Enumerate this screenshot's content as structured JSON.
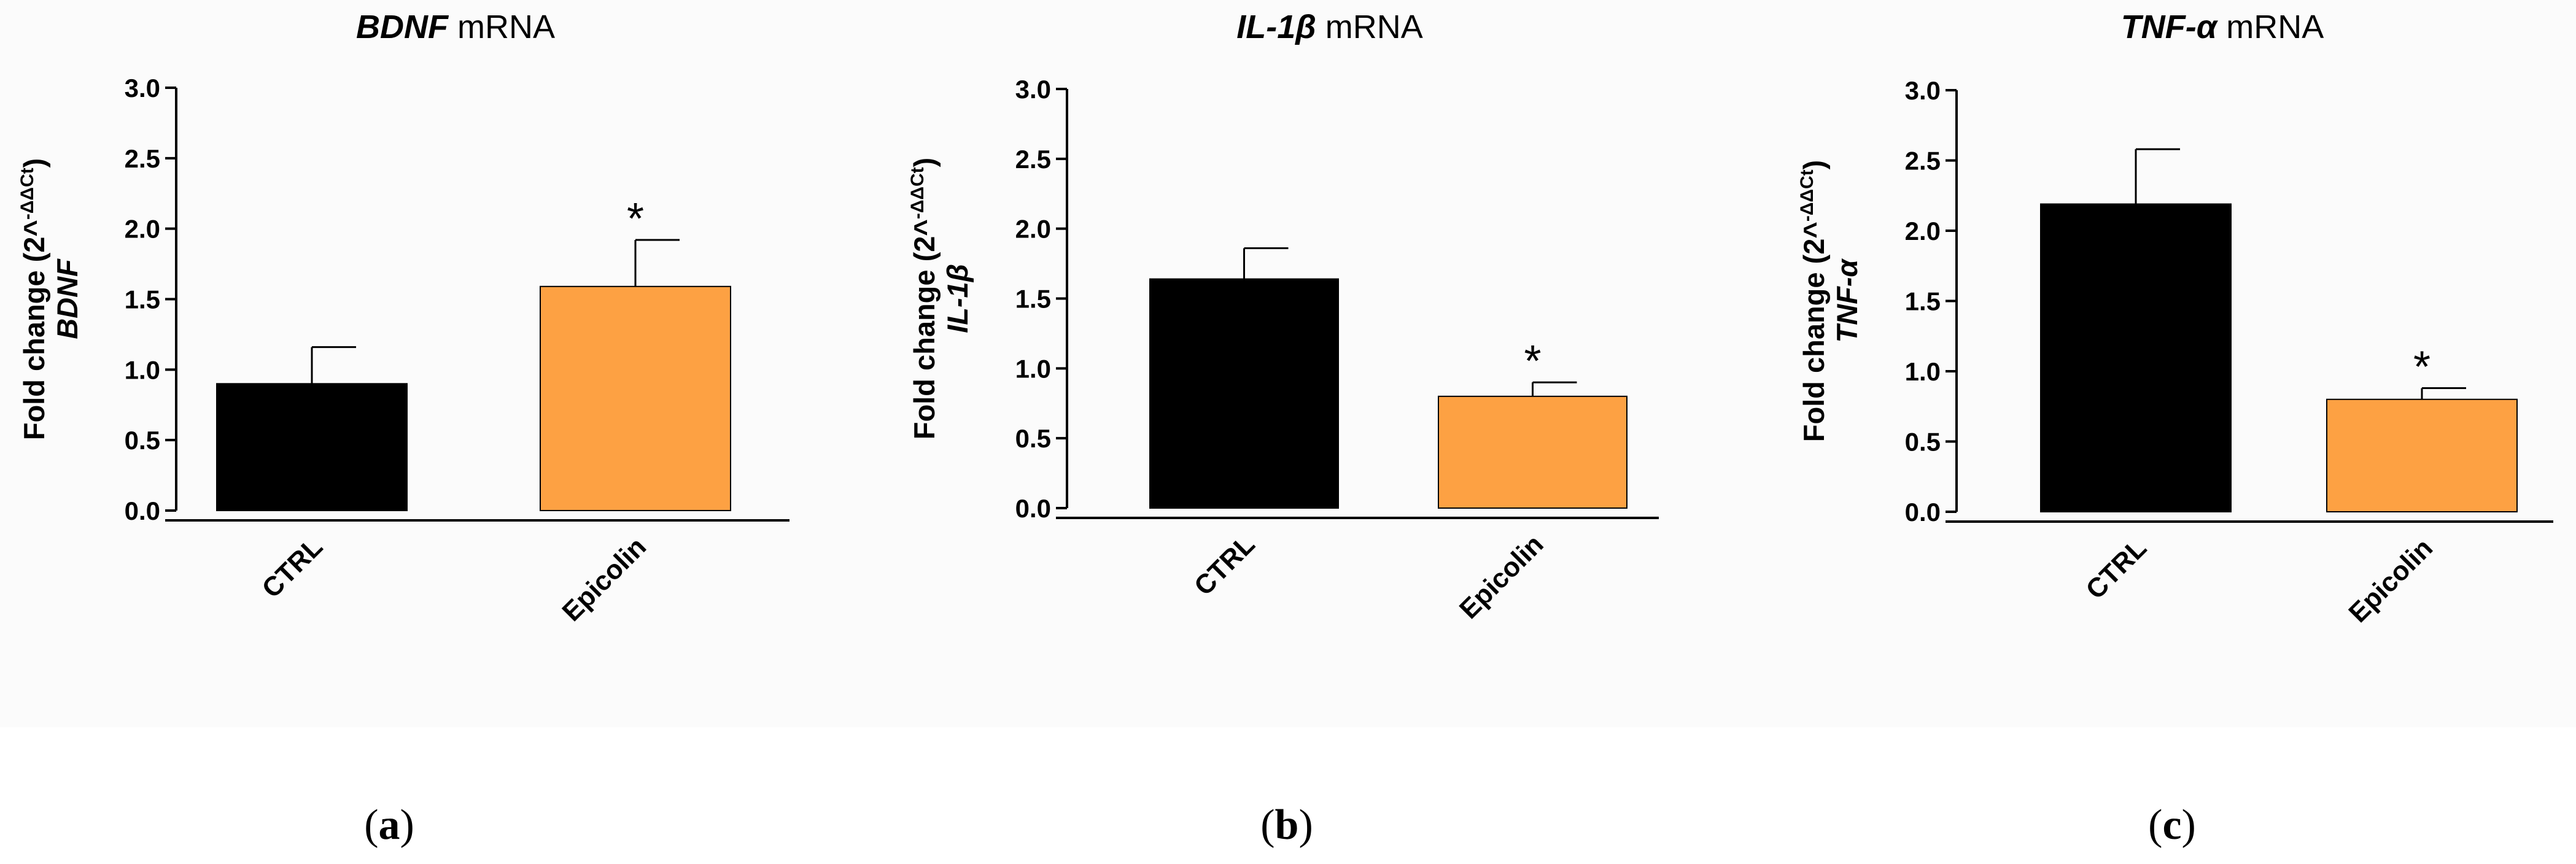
{
  "colors": {
    "ctrl": "#000000",
    "epicolin": "#fda143",
    "axis": "#000000"
  },
  "chart_data": [
    {
      "type": "bar",
      "panel_label": "(a)",
      "title_gene": "BDNF",
      "title_suffix": " mRNA",
      "ylabel_line1": "Fold change (2^",
      "ylabel_sup": "-ΔΔCt",
      "ylabel_line1_end": ")",
      "ylabel_gene": "BDNF",
      "ylim": [
        0,
        3.0
      ],
      "yticks": [
        "0.0",
        "0.5",
        "1.0",
        "1.5",
        "2.0",
        "2.5",
        "3.0"
      ],
      "categories": [
        "CTRL",
        "Epicolin"
      ],
      "values": [
        0.9,
        1.59
      ],
      "errors": [
        0.26,
        0.33
      ],
      "significance": [
        "",
        "*"
      ]
    },
    {
      "type": "bar",
      "panel_label": "(b)",
      "title_gene": "IL-1β",
      "title_suffix": " mRNA",
      "ylabel_line1": "Fold change (2^",
      "ylabel_sup": "-ΔΔCt",
      "ylabel_line1_end": ")",
      "ylabel_gene": "IL-1β",
      "ylim": [
        0,
        3.0
      ],
      "yticks": [
        "0.0",
        "0.5",
        "1.0",
        "1.5",
        "2.0",
        "2.5",
        "3.0"
      ],
      "categories": [
        "CTRL",
        "Epicolin"
      ],
      "values": [
        1.64,
        0.8
      ],
      "errors": [
        0.22,
        0.1
      ],
      "significance": [
        "",
        "*"
      ]
    },
    {
      "type": "bar",
      "panel_label": "(c)",
      "title_gene": "TNF-α",
      "title_suffix": " mRNA",
      "ylabel_line1": "Fold change (2^",
      "ylabel_sup": "-ΔΔCt",
      "ylabel_line1_end": ")",
      "ylabel_gene": "TNF-α",
      "ylim": [
        0,
        3.0
      ],
      "yticks": [
        "0.0",
        "0.5",
        "1.0",
        "1.5",
        "2.0",
        "2.5",
        "3.0"
      ],
      "categories": [
        "CTRL",
        "Epicolin"
      ],
      "values": [
        2.19,
        0.8
      ],
      "errors": [
        0.39,
        0.08
      ],
      "significance": [
        "",
        "*"
      ]
    }
  ]
}
